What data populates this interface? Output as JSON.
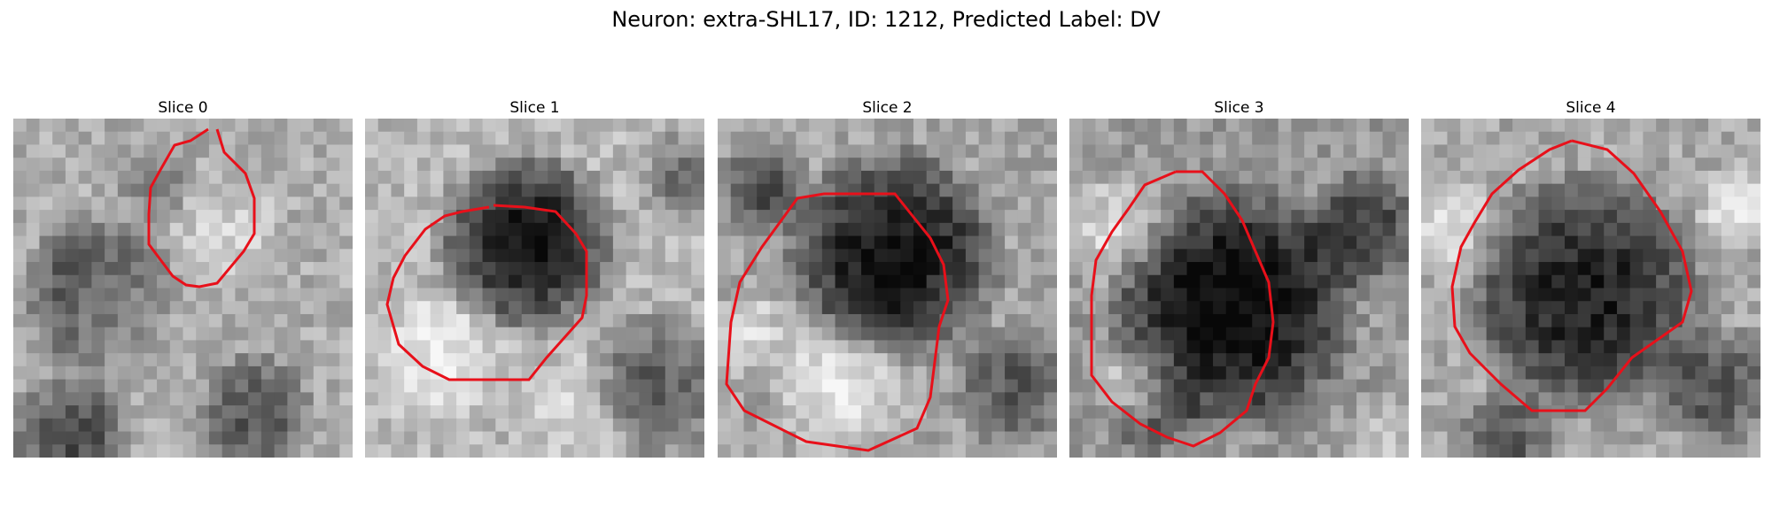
{
  "figure": {
    "title": "Neuron: extra-SHL17, ID: 1212, Predicted Label: DV"
  },
  "panels": [
    {
      "title": "Slice 0"
    },
    {
      "title": "Slice 1"
    },
    {
      "title": "Slice 2"
    },
    {
      "title": "Slice 3"
    },
    {
      "title": "Slice 4"
    }
  ],
  "colors": {
    "contour": "#e8101a"
  }
}
